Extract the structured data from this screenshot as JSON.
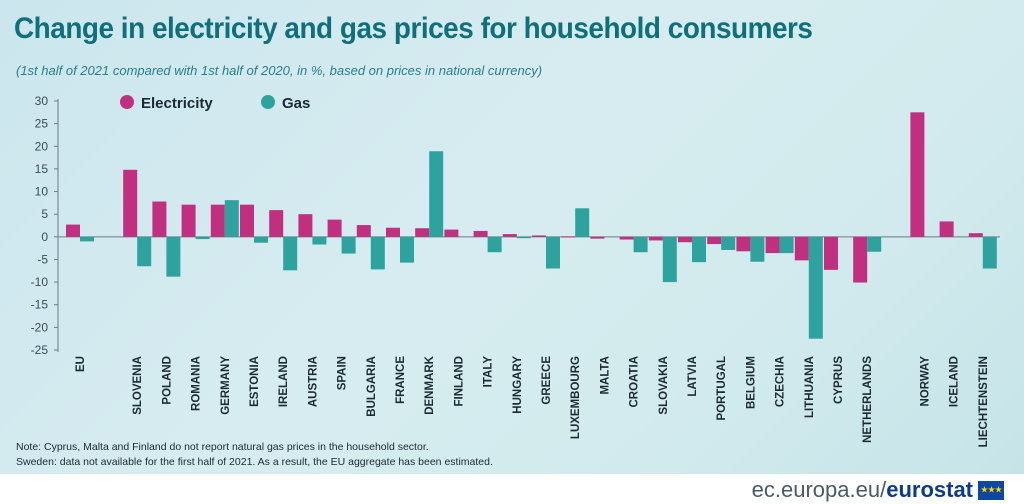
{
  "title": "Change in electricity and gas prices for household consumers",
  "subtitle": "(1st half of 2021 compared with 1st half of 2020, in %, based on prices in national currency)",
  "notes": [
    "Note: Cyprus, Malta and Finland do not report natural gas prices in the household sector.",
    "Sweden: data not available for the first half of 2021. As a result, the EU aggregate has been estimated."
  ],
  "footer": {
    "domain": "ec.europa.eu/",
    "brand": "eurostat"
  },
  "colors": {
    "electricity": "#c0307e",
    "gas": "#2ea39d",
    "axis": "#6b7b85",
    "text": "#1b2a33"
  },
  "chart_data": {
    "type": "bar",
    "title": "Change in electricity and gas prices for household consumers",
    "xlabel": "",
    "ylabel": "",
    "ylim": [
      -25,
      30
    ],
    "yticks": [
      30,
      25,
      20,
      15,
      10,
      5,
      0,
      -5,
      -10,
      -15,
      -20,
      -25
    ],
    "grid": false,
    "legend": "top-left",
    "categories": [
      "EU",
      "SLOVENIA",
      "POLAND",
      "ROMANIA",
      "GERMANY",
      "ESTONIA",
      "IRELAND",
      "AUSTRIA",
      "SPAIN",
      "BULGARIA",
      "FRANCE",
      "DENMARK",
      "FINLAND",
      "ITALY",
      "HUNGARY",
      "GREECE",
      "LUXEMBOURG",
      "MALTA",
      "CROATIA",
      "SLOVAKIA",
      "LATVIA",
      "PORTUGAL",
      "BELGIUM",
      "CZECHIA",
      "LITHUANIA",
      "CYPRUS",
      "NETHERLANDS",
      "NORWAY",
      "ICELAND",
      "LIECHTENSTEIN"
    ],
    "groups": [
      1,
      2,
      2,
      2,
      2,
      2,
      2,
      2,
      2,
      2,
      2,
      2,
      2,
      2,
      2,
      2,
      2,
      2,
      2,
      2,
      2,
      2,
      2,
      2,
      2,
      2,
      2,
      3,
      3,
      3
    ],
    "series": [
      {
        "name": "Electricity",
        "values": [
          2.7,
          14.8,
          7.8,
          7.1,
          7.1,
          7.1,
          5.9,
          5.0,
          3.8,
          2.6,
          2.0,
          1.9,
          1.6,
          1.3,
          0.6,
          0.3,
          0.1,
          -0.4,
          -0.6,
          -0.8,
          -1.2,
          -1.6,
          -3.2,
          -3.6,
          -5.2,
          -7.3,
          -10.1,
          27.5,
          3.4,
          0.8
        ]
      },
      {
        "name": "Gas",
        "values": [
          -1.0,
          -6.5,
          -8.8,
          -0.5,
          8.1,
          -1.3,
          -7.4,
          -1.7,
          -3.7,
          -7.2,
          -5.7,
          18.9,
          null,
          -3.4,
          -0.3,
          -7.0,
          6.3,
          null,
          -3.4,
          -10.0,
          -5.6,
          -2.9,
          -5.5,
          -3.6,
          -22.5,
          null,
          -3.3,
          null,
          null,
          -7.0
        ]
      }
    ]
  }
}
